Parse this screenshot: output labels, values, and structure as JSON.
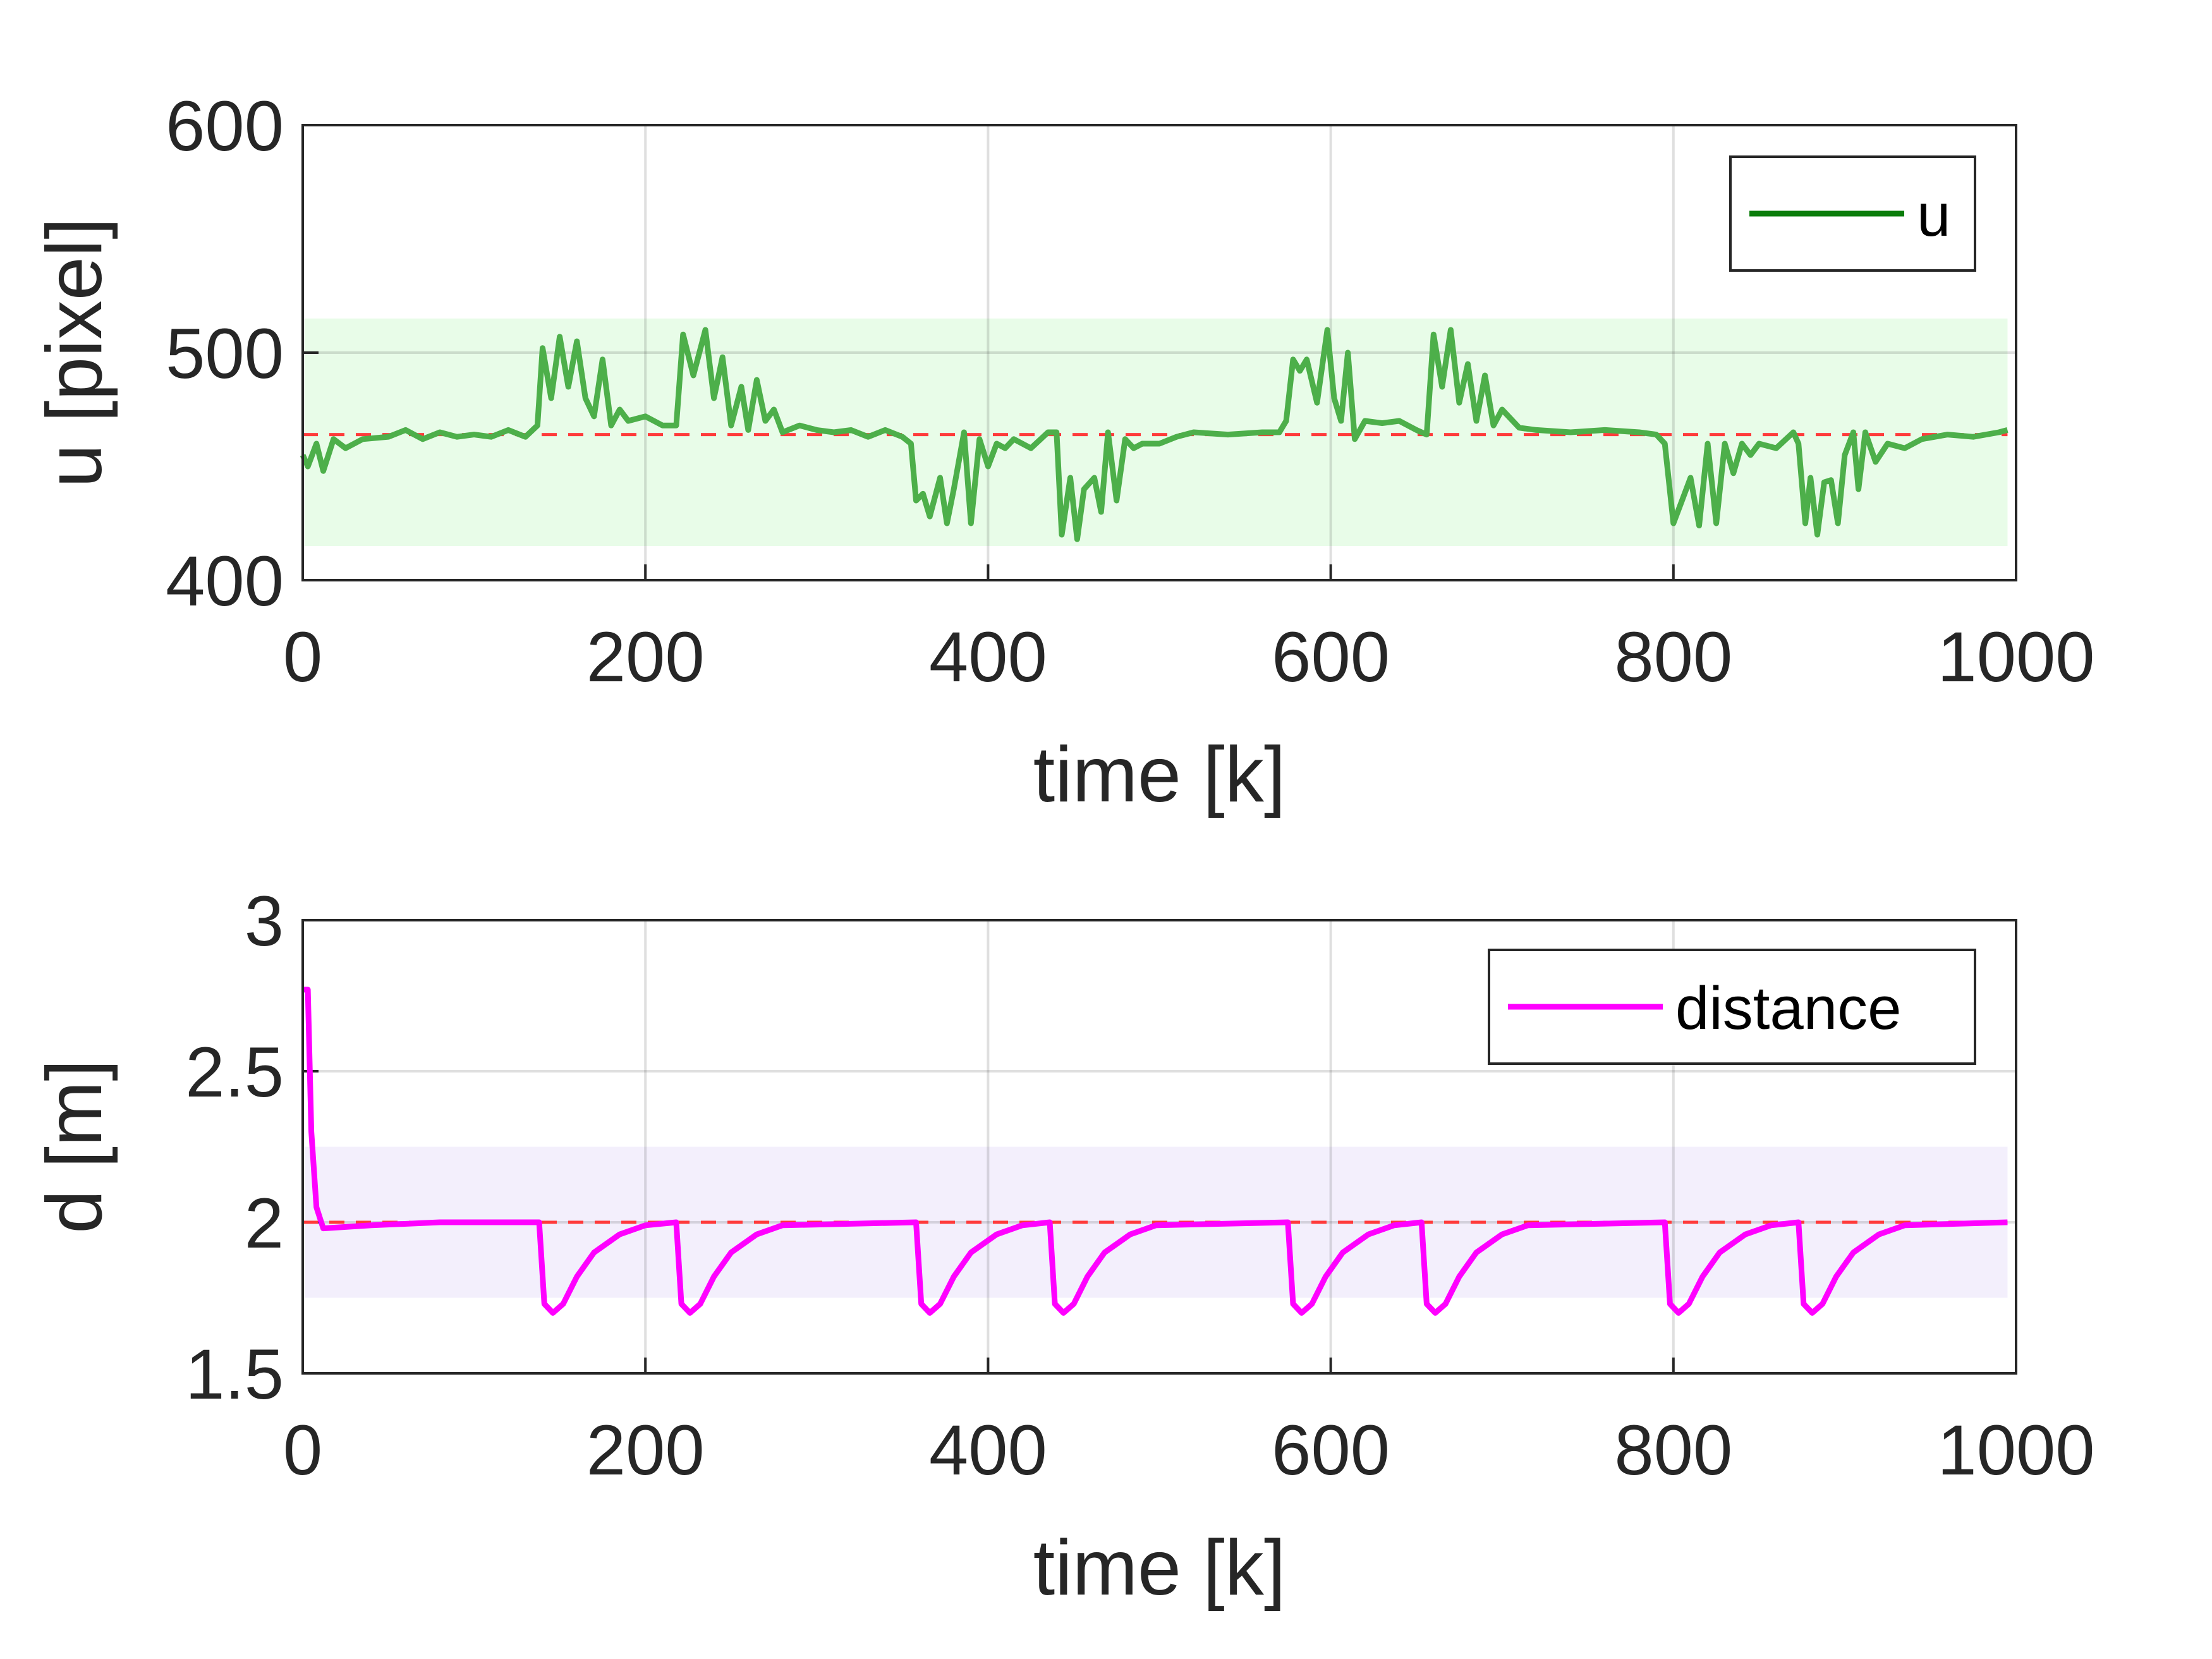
{
  "chart_data": [
    {
      "type": "line",
      "xlabel": "time [k]",
      "ylabel": "u [pixel]",
      "xlim": [
        0,
        1000
      ],
      "ylim": [
        400,
        600
      ],
      "xticks": [
        "0",
        "200",
        "400",
        "600",
        "800",
        "1000"
      ],
      "yticks": [
        "400",
        "500",
        "600"
      ],
      "grid": true,
      "legend_placement": "top-right",
      "reference_line": {
        "y": 464,
        "color": "#ff3b3b",
        "style": "dashed"
      },
      "band": {
        "y": [
          415,
          515
        ],
        "color": "#e8fce8"
      },
      "series": [
        {
          "name": "u",
          "color": "#4daf4a",
          "legend_color": "#0a7d0a",
          "points": [
            [
              0,
              455
            ],
            [
              3,
              450
            ],
            [
              8,
              460
            ],
            [
              12,
              448
            ],
            [
              18,
              462
            ],
            [
              25,
              458
            ],
            [
              35,
              462
            ],
            [
              50,
              463
            ],
            [
              60,
              466
            ],
            [
              70,
              462
            ],
            [
              80,
              465
            ],
            [
              90,
              463
            ],
            [
              100,
              464
            ],
            [
              110,
              463
            ],
            [
              120,
              466
            ],
            [
              130,
              463
            ],
            [
              137,
              468
            ],
            [
              140,
              502
            ],
            [
              145,
              480
            ],
            [
              150,
              507
            ],
            [
              155,
              485
            ],
            [
              160,
              505
            ],
            [
              165,
              480
            ],
            [
              170,
              472
            ],
            [
              175,
              497
            ],
            [
              180,
              468
            ],
            [
              185,
              475
            ],
            [
              190,
              470
            ],
            [
              200,
              472
            ],
            [
              210,
              468
            ],
            [
              218,
              468
            ],
            [
              222,
              508
            ],
            [
              228,
              490
            ],
            [
              235,
              510
            ],
            [
              240,
              480
            ],
            [
              245,
              498
            ],
            [
              250,
              468
            ],
            [
              256,
              485
            ],
            [
              260,
              466
            ],
            [
              265,
              488
            ],
            [
              270,
              470
            ],
            [
              275,
              475
            ],
            [
              280,
              465
            ],
            [
              290,
              468
            ],
            [
              300,
              466
            ],
            [
              310,
              465
            ],
            [
              320,
              466
            ],
            [
              330,
              463
            ],
            [
              340,
              466
            ],
            [
              350,
              463
            ],
            [
              355,
              460
            ],
            [
              358,
              435
            ],
            [
              362,
              438
            ],
            [
              366,
              428
            ],
            [
              372,
              445
            ],
            [
              376,
              425
            ],
            [
              380,
              440
            ],
            [
              386,
              465
            ],
            [
              390,
              425
            ],
            [
              395,
              462
            ],
            [
              400,
              450
            ],
            [
              405,
              460
            ],
            [
              410,
              458
            ],
            [
              415,
              462
            ],
            [
              425,
              458
            ],
            [
              435,
              465
            ],
            [
              440,
              465
            ],
            [
              443,
              420
            ],
            [
              448,
              445
            ],
            [
              452,
              418
            ],
            [
              456,
              440
            ],
            [
              462,
              445
            ],
            [
              466,
              430
            ],
            [
              470,
              465
            ],
            [
              475,
              435
            ],
            [
              480,
              462
            ],
            [
              485,
              458
            ],
            [
              490,
              460
            ],
            [
              500,
              460
            ],
            [
              510,
              463
            ],
            [
              520,
              465
            ],
            [
              540,
              464
            ],
            [
              560,
              465
            ],
            [
              570,
              465
            ],
            [
              574,
              470
            ],
            [
              578,
              497
            ],
            [
              582,
              492
            ],
            [
              586,
              497
            ],
            [
              592,
              478
            ],
            [
              598,
              510
            ],
            [
              602,
              480
            ],
            [
              606,
              470
            ],
            [
              610,
              500
            ],
            [
              614,
              462
            ],
            [
              620,
              470
            ],
            [
              630,
              469
            ],
            [
              640,
              470
            ],
            [
              650,
              466
            ],
            [
              656,
              464
            ],
            [
              660,
              508
            ],
            [
              665,
              485
            ],
            [
              670,
              510
            ],
            [
              675,
              478
            ],
            [
              680,
              495
            ],
            [
              685,
              470
            ],
            [
              690,
              490
            ],
            [
              695,
              468
            ],
            [
              700,
              475
            ],
            [
              710,
              467
            ],
            [
              720,
              466
            ],
            [
              740,
              465
            ],
            [
              760,
              466
            ],
            [
              780,
              465
            ],
            [
              790,
              464
            ],
            [
              795,
              460
            ],
            [
              800,
              425
            ],
            [
              805,
              435
            ],
            [
              810,
              445
            ],
            [
              815,
              424
            ],
            [
              820,
              460
            ],
            [
              825,
              425
            ],
            [
              830,
              460
            ],
            [
              835,
              447
            ],
            [
              840,
              460
            ],
            [
              845,
              455
            ],
            [
              850,
              460
            ],
            [
              860,
              458
            ],
            [
              870,
              465
            ],
            [
              873,
              460
            ],
            [
              877,
              425
            ],
            [
              880,
              445
            ],
            [
              884,
              420
            ],
            [
              888,
              443
            ],
            [
              892,
              444
            ],
            [
              896,
              425
            ],
            [
              900,
              455
            ],
            [
              905,
              465
            ],
            [
              908,
              440
            ],
            [
              912,
              465
            ],
            [
              918,
              452
            ],
            [
              925,
              460
            ],
            [
              935,
              458
            ],
            [
              945,
              462
            ],
            [
              960,
              464
            ],
            [
              975,
              463
            ],
            [
              990,
              465
            ],
            [
              995,
              466
            ]
          ]
        }
      ]
    },
    {
      "type": "line",
      "xlabel": "time [k]",
      "ylabel": "d [m]",
      "xlim": [
        0,
        1000
      ],
      "ylim": [
        1.5,
        3
      ],
      "xticks": [
        "0",
        "200",
        "400",
        "600",
        "800",
        "1000"
      ],
      "yticks": [
        "1.5",
        "2",
        "2.5",
        "3"
      ],
      "grid": true,
      "legend_placement": "top-right",
      "reference_line": {
        "y": 2.0,
        "color": "#ff3b3b",
        "style": "dashed"
      },
      "band": {
        "y": [
          1.75,
          2.25
        ],
        "color": "#f3effc"
      },
      "series": [
        {
          "name": "distance",
          "color": "#ff00ff",
          "legend_color": "#ff00ff",
          "points": [
            [
              0,
              2.77
            ],
            [
              3,
              2.77
            ],
            [
              5,
              2.3
            ],
            [
              8,
              2.05
            ],
            [
              12,
              1.98
            ],
            [
              40,
              1.99
            ],
            [
              80,
              2.0
            ],
            [
              138,
              2.0
            ],
            [
              141,
              1.73
            ],
            [
              146,
              1.7
            ],
            [
              152,
              1.73
            ],
            [
              160,
              1.82
            ],
            [
              170,
              1.9
            ],
            [
              185,
              1.96
            ],
            [
              200,
              1.99
            ],
            [
              218,
              2.0
            ],
            [
              221,
              1.73
            ],
            [
              226,
              1.7
            ],
            [
              232,
              1.73
            ],
            [
              240,
              1.82
            ],
            [
              250,
              1.9
            ],
            [
              265,
              1.96
            ],
            [
              280,
              1.99
            ],
            [
              358,
              2.0
            ],
            [
              361,
              1.73
            ],
            [
              366,
              1.7
            ],
            [
              372,
              1.73
            ],
            [
              380,
              1.82
            ],
            [
              390,
              1.9
            ],
            [
              405,
              1.96
            ],
            [
              420,
              1.99
            ],
            [
              436,
              2.0
            ],
            [
              439,
              1.73
            ],
            [
              444,
              1.7
            ],
            [
              450,
              1.73
            ],
            [
              458,
              1.82
            ],
            [
              468,
              1.9
            ],
            [
              483,
              1.96
            ],
            [
              498,
              1.99
            ],
            [
              575,
              2.0
            ],
            [
              578,
              1.73
            ],
            [
              583,
              1.7
            ],
            [
              589,
              1.73
            ],
            [
              597,
              1.82
            ],
            [
              607,
              1.9
            ],
            [
              622,
              1.96
            ],
            [
              637,
              1.99
            ],
            [
              653,
              2.0
            ],
            [
              656,
              1.73
            ],
            [
              661,
              1.7
            ],
            [
              667,
              1.73
            ],
            [
              675,
              1.82
            ],
            [
              685,
              1.9
            ],
            [
              700,
              1.96
            ],
            [
              715,
              1.99
            ],
            [
              795,
              2.0
            ],
            [
              798,
              1.73
            ],
            [
              803,
              1.7
            ],
            [
              809,
              1.73
            ],
            [
              817,
              1.82
            ],
            [
              827,
              1.9
            ],
            [
              842,
              1.96
            ],
            [
              857,
              1.99
            ],
            [
              873,
              2.0
            ],
            [
              876,
              1.73
            ],
            [
              881,
              1.7
            ],
            [
              887,
              1.73
            ],
            [
              895,
              1.82
            ],
            [
              905,
              1.9
            ],
            [
              920,
              1.96
            ],
            [
              935,
              1.99
            ],
            [
              995,
              2.0
            ]
          ]
        }
      ]
    }
  ]
}
